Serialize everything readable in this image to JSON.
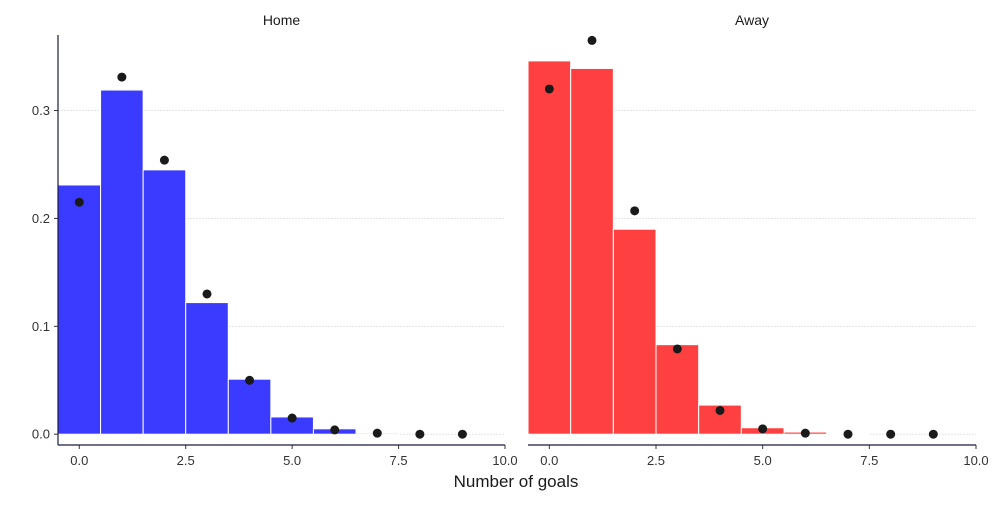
{
  "chart_data": {
    "type": "bar",
    "xlabel": "Number of goals",
    "ylabel": "",
    "panels": [
      {
        "name": "Home",
        "bar_color": "#3b3bff",
        "bars": [
          {
            "x": 0,
            "value": 0.231
          },
          {
            "x": 1,
            "value": 0.319
          },
          {
            "x": 2,
            "value": 0.245
          },
          {
            "x": 3,
            "value": 0.122
          },
          {
            "x": 4,
            "value": 0.051
          },
          {
            "x": 5,
            "value": 0.016
          },
          {
            "x": 6,
            "value": 0.005
          },
          {
            "x": 7,
            "value": 0.001
          }
        ],
        "points": [
          {
            "x": 0,
            "y": 0.215
          },
          {
            "x": 1,
            "y": 0.331
          },
          {
            "x": 2,
            "y": 0.254
          },
          {
            "x": 3,
            "y": 0.13
          },
          {
            "x": 4,
            "y": 0.05
          },
          {
            "x": 5,
            "y": 0.015
          },
          {
            "x": 6,
            "y": 0.004
          },
          {
            "x": 7,
            "y": 0.001
          },
          {
            "x": 8,
            "y": 0.0
          },
          {
            "x": 9,
            "y": 0.0
          }
        ]
      },
      {
        "name": "Away",
        "bar_color": "#ff4040",
        "bars": [
          {
            "x": 0,
            "value": 0.346
          },
          {
            "x": 1,
            "value": 0.339
          },
          {
            "x": 2,
            "value": 0.19
          },
          {
            "x": 3,
            "value": 0.083
          },
          {
            "x": 4,
            "value": 0.027
          },
          {
            "x": 5,
            "value": 0.006
          },
          {
            "x": 6,
            "value": 0.002
          },
          {
            "x": 7,
            "value": 0.0005
          }
        ],
        "points": [
          {
            "x": 0,
            "y": 0.32
          },
          {
            "x": 1,
            "y": 0.365
          },
          {
            "x": 2,
            "y": 0.207
          },
          {
            "x": 3,
            "y": 0.079
          },
          {
            "x": 4,
            "y": 0.022
          },
          {
            "x": 5,
            "y": 0.005
          },
          {
            "x": 6,
            "y": 0.001
          },
          {
            "x": 7,
            "y": 0.0
          },
          {
            "x": 8,
            "y": 0.0
          },
          {
            "x": 9,
            "y": 0.0
          }
        ]
      }
    ],
    "xlim": [
      -0.5,
      10
    ],
    "ylim": [
      -0.01,
      0.37
    ],
    "x_ticks": [
      {
        "value": 0,
        "label": "0.0"
      },
      {
        "value": 2.5,
        "label": "2.5"
      },
      {
        "value": 5,
        "label": "5.0"
      },
      {
        "value": 7.5,
        "label": "7.5"
      },
      {
        "value": 10,
        "label": "10.0"
      }
    ],
    "y_ticks": [
      {
        "value": 0,
        "label": "0.0"
      },
      {
        "value": 0.1,
        "label": "0.1"
      },
      {
        "value": 0.2,
        "label": "0.2"
      },
      {
        "value": 0.3,
        "label": "0.3"
      }
    ],
    "grid": true,
    "point_color": "#1a1a1a",
    "axis_color": "#1a1a40"
  }
}
